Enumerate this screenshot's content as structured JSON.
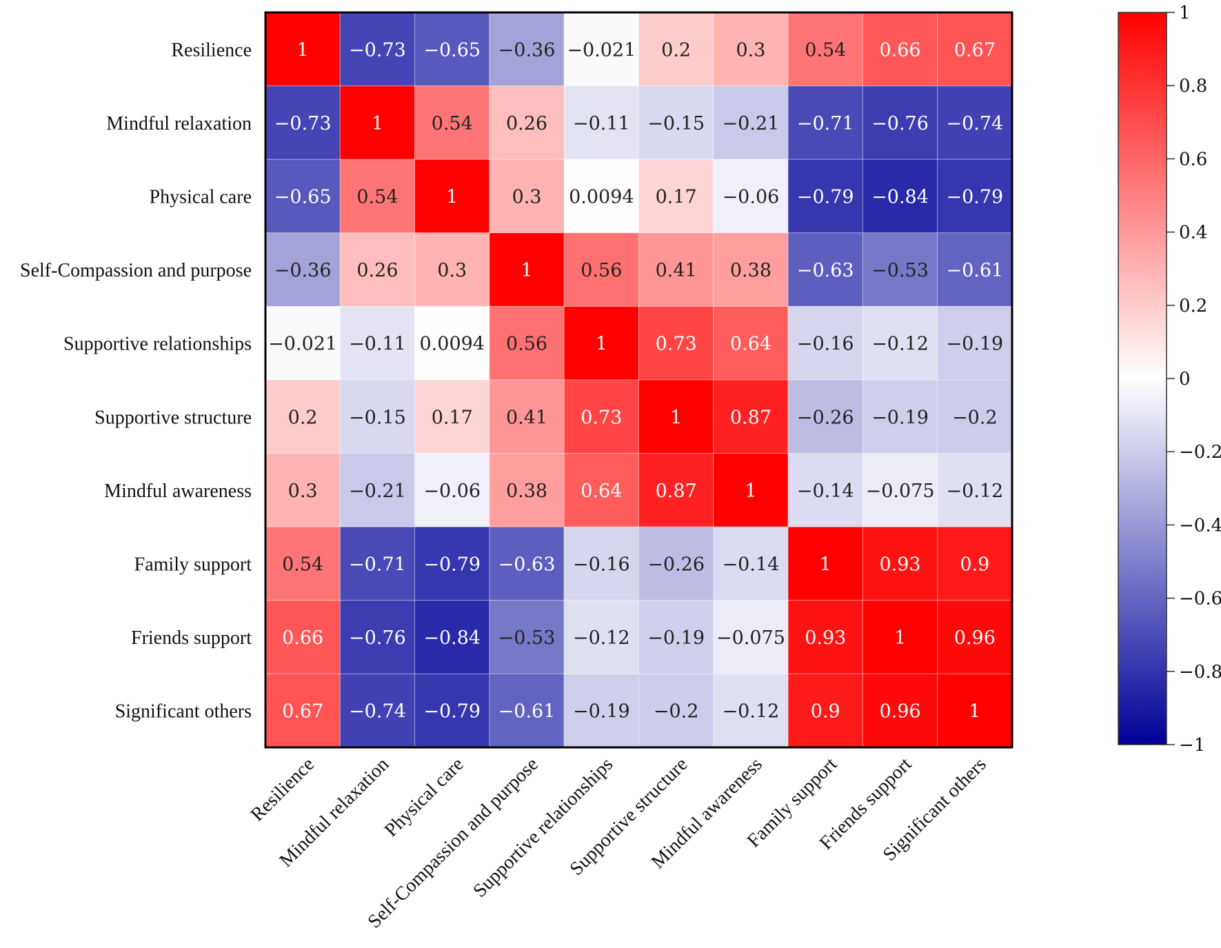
{
  "chart_data": {
    "type": "heatmap",
    "title": "",
    "xlabel": "",
    "ylabel": "",
    "rows": [
      "Resilience",
      "Mindful relaxation",
      "Physical care",
      "Self-Compassion and purpose",
      "Supportive relationships",
      "Supportive structure",
      "Mindful awareness",
      "Family support",
      "Friends support",
      "Significant others"
    ],
    "columns": [
      "Resilience",
      "Mindful relaxation",
      "Physical care",
      "Self-Compassion and purpose",
      "Supportive relationships",
      "Supportive structure",
      "Mindful awareness",
      "Family support",
      "Friends support",
      "Significant others"
    ],
    "values": [
      [
        1,
        -0.73,
        -0.65,
        -0.36,
        -0.021,
        0.2,
        0.3,
        0.54,
        0.66,
        0.67
      ],
      [
        -0.73,
        1,
        0.54,
        0.26,
        -0.11,
        -0.15,
        -0.21,
        -0.71,
        -0.76,
        -0.74
      ],
      [
        -0.65,
        0.54,
        1,
        0.3,
        0.0094,
        0.17,
        -0.06,
        -0.79,
        -0.84,
        -0.79
      ],
      [
        -0.36,
        0.26,
        0.3,
        1,
        0.56,
        0.41,
        0.38,
        -0.63,
        -0.53,
        -0.61
      ],
      [
        -0.021,
        -0.11,
        0.0094,
        0.56,
        1,
        0.73,
        0.64,
        -0.16,
        -0.12,
        -0.19
      ],
      [
        0.2,
        -0.15,
        0.17,
        0.41,
        0.73,
        1,
        0.87,
        -0.26,
        -0.19,
        -0.2
      ],
      [
        0.3,
        -0.21,
        -0.06,
        0.38,
        0.64,
        0.87,
        1,
        -0.14,
        -0.075,
        -0.12
      ],
      [
        0.54,
        -0.71,
        -0.79,
        -0.63,
        -0.16,
        -0.26,
        -0.14,
        1,
        0.93,
        0.9
      ],
      [
        0.66,
        -0.76,
        -0.84,
        -0.53,
        -0.12,
        -0.19,
        -0.075,
        0.93,
        1,
        0.96
      ],
      [
        0.67,
        -0.74,
        -0.79,
        -0.61,
        -0.19,
        -0.2,
        -0.12,
        0.9,
        0.96,
        1
      ]
    ],
    "labels": [
      [
        "1",
        "−0.73",
        "−0.65",
        "−0.36",
        "−0.021",
        "0.2",
        "0.3",
        "0.54",
        "0.66",
        "0.67"
      ],
      [
        "−0.73",
        "1",
        "0.54",
        "0.26",
        "−0.11",
        "−0.15",
        "−0.21",
        "−0.71",
        "−0.76",
        "−0.74"
      ],
      [
        "−0.65",
        "0.54",
        "1",
        "0.3",
        "0.0094",
        "0.17",
        "−0.06",
        "−0.79",
        "−0.84",
        "−0.79"
      ],
      [
        "−0.36",
        "0.26",
        "0.3",
        "1",
        "0.56",
        "0.41",
        "0.38",
        "−0.63",
        "−0.53",
        "−0.61"
      ],
      [
        "−0.021",
        "−0.11",
        "0.0094",
        "0.56",
        "1",
        "0.73",
        "0.64",
        "−0.16",
        "−0.12",
        "−0.19"
      ],
      [
        "0.2",
        "−0.15",
        "0.17",
        "0.41",
        "0.73",
        "1",
        "0.87",
        "−0.26",
        "−0.19",
        "−0.2"
      ],
      [
        "0.3",
        "−0.21",
        "−0.06",
        "0.38",
        "0.64",
        "0.87",
        "1",
        "−0.14",
        "−0.075",
        "−0.12"
      ],
      [
        "0.54",
        "−0.71",
        "−0.79",
        "−0.63",
        "−0.16",
        "−0.26",
        "−0.14",
        "1",
        "0.93",
        "0.9"
      ],
      [
        "0.66",
        "−0.76",
        "−0.84",
        "−0.53",
        "−0.12",
        "−0.19",
        "−0.075",
        "0.93",
        "1",
        "0.96"
      ],
      [
        "0.67",
        "−0.74",
        "−0.79",
        "−0.61",
        "−0.19",
        "−0.2",
        "−0.12",
        "0.9",
        "0.96",
        "1"
      ]
    ],
    "colorbar": {
      "range": [
        -1,
        1
      ],
      "ticks": [
        1,
        0.8,
        0.6,
        0.4,
        0.2,
        0,
        -0.2,
        -0.4,
        -0.6,
        -0.8,
        -1
      ],
      "tick_labels": [
        "1",
        "0.8",
        "0.6",
        "0.4",
        "0.2",
        "0",
        "−0.2",
        "−0.4",
        "−0.6",
        "−0.8",
        "−1"
      ],
      "colors": {
        "min": "#000099",
        "mid": "#ffffff",
        "max": "#ff0000"
      }
    },
    "legend": "right",
    "grid": false
  }
}
